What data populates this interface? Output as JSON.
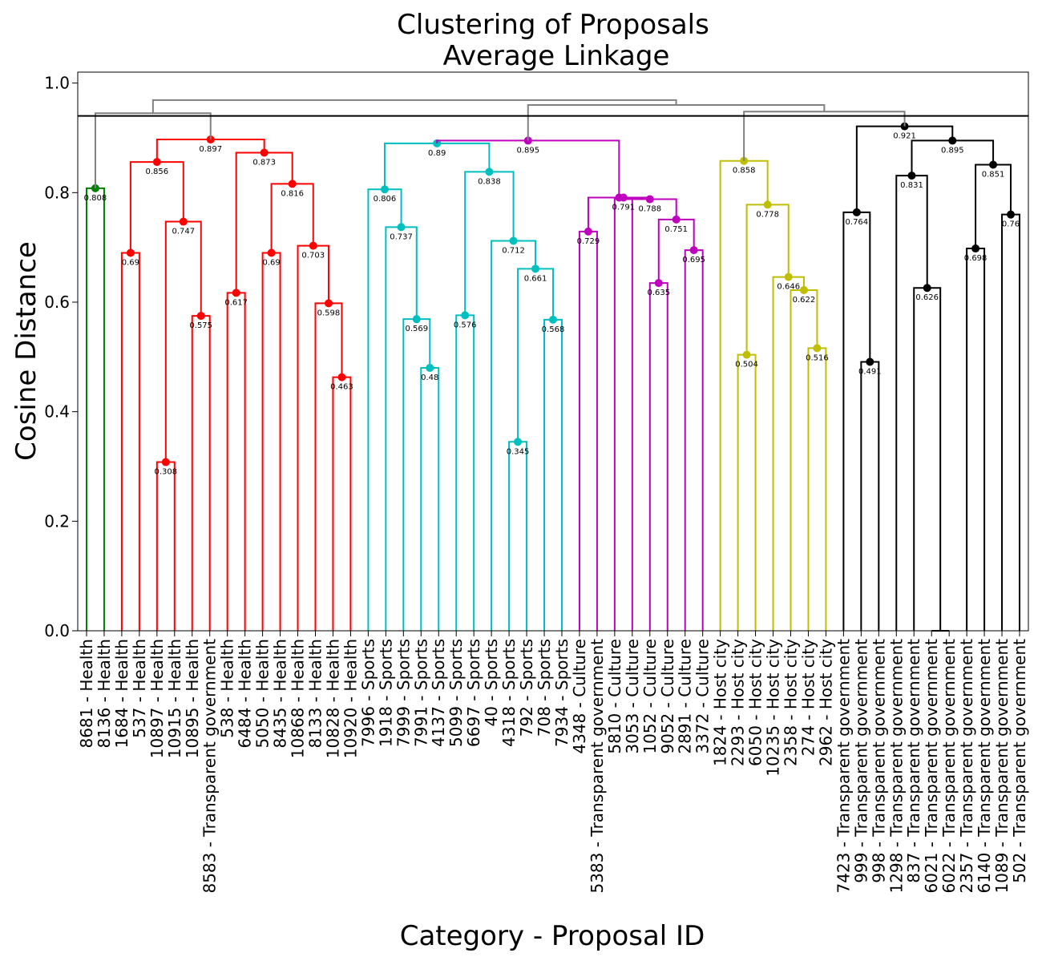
{
  "chart_data": {
    "type": "dendrogram",
    "title": "Clustering of Proposals",
    "subtitle": "Average Linkage",
    "xlabel": "Category - Proposal ID",
    "ylabel": "Cosine Distance",
    "ylim": [
      0,
      1.02
    ],
    "yticks": [
      0.0,
      0.2,
      0.4,
      0.6,
      0.8,
      1.0
    ],
    "ytick_labels": [
      "0.0",
      "0.2",
      "0.4",
      "0.6",
      "0.8",
      "1.0"
    ],
    "threshold": 0.94,
    "grid": false,
    "leaves": [
      "8681 - Health",
      "8136 - Health",
      "1684 - Health",
      "537 - Health",
      "10897 - Health",
      "10915 - Health",
      "10895 - Health",
      "8583 - Transparent government",
      "538 - Health",
      "6484 - Health",
      "5050 - Health",
      "8435 - Health",
      "10868 - Health",
      "8133 - Health",
      "10828 - Health",
      "10920 - Health",
      "7996 - Sports",
      "1918 - Sports",
      "7999 - Sports",
      "7991 - Sports",
      "4137 - Sports",
      "5099 - Sports",
      "6697 - Sports",
      "40 - Sports",
      "4318 - Sports",
      "792 - Sports",
      "708 - Sports",
      "7934 - Sports",
      "4348 - Culture",
      "5383 - Transparent government",
      "5810 - Culture",
      "3053 - Culture",
      "1052 - Culture",
      "9052 - Culture",
      "2891 - Culture",
      "3372 - Culture",
      "1824 - Host city",
      "2293 - Host city",
      "6050 - Host city",
      "10235 - Host city",
      "2358 - Host city",
      "274 - Host city",
      "2962 - Host city",
      "7423 - Transparent government",
      "999 - Transparent government",
      "998 - Transparent government",
      "1298 - Transparent government",
      "837 - Transparent government",
      "6021 - Transparent government",
      "6022 - Transparent government",
      "2357 - Transparent government",
      "6140 - Transparent government",
      "1089 - Transparent government",
      "502 - Transparent government"
    ],
    "colors": {
      "green": "#008000",
      "red": "#ff0000",
      "cyan": "#00bfbf",
      "magenta": "#bf00bf",
      "yellow": "#bfbf00",
      "black": "#000000",
      "above": "#808080"
    },
    "merges": [
      {
        "a": 0,
        "b": 1,
        "h": 0.808,
        "label": "0.808",
        "color": "green"
      },
      {
        "a": 2,
        "b": 3,
        "h": 0.69,
        "label": "0.69",
        "color": "red"
      },
      {
        "a": 4,
        "b": 5,
        "h": 0.308,
        "label": "0.308",
        "color": "red"
      },
      {
        "a": 6,
        "b": 7,
        "h": 0.575,
        "label": "0.575",
        "color": "red"
      },
      {
        "a": 56,
        "b": 57,
        "h": 0.747,
        "label": "0.747",
        "color": "red"
      },
      {
        "a": 55,
        "b": 58,
        "h": 0.856,
        "label": "0.856",
        "color": "red"
      },
      {
        "a": 8,
        "b": 9,
        "h": 0.617,
        "label": "0.617",
        "color": "red"
      },
      {
        "a": 10,
        "b": 11,
        "h": 0.69,
        "label": "0.69",
        "color": "red"
      },
      {
        "a": 14,
        "b": 15,
        "h": 0.463,
        "label": "0.463",
        "color": "red"
      },
      {
        "a": 13,
        "b": 62,
        "h": 0.598,
        "label": "0.598",
        "color": "red"
      },
      {
        "a": 12,
        "b": 63,
        "h": 0.703,
        "label": "0.703",
        "color": "red"
      },
      {
        "a": 61,
        "b": 64,
        "h": 0.816,
        "label": "0.816",
        "color": "red"
      },
      {
        "a": 60,
        "b": 65,
        "h": 0.873,
        "label": "0.873",
        "color": "red"
      },
      {
        "a": 59,
        "b": 66,
        "h": 0.897,
        "label": "0.897",
        "color": "red"
      },
      {
        "a": 19,
        "b": 20,
        "h": 0.48,
        "label": "0.48",
        "color": "cyan"
      },
      {
        "a": 18,
        "b": 68,
        "h": 0.569,
        "label": "0.569",
        "color": "cyan"
      },
      {
        "a": 17,
        "b": 69,
        "h": 0.737,
        "label": "0.737",
        "color": "cyan"
      },
      {
        "a": 16,
        "b": 70,
        "h": 0.806,
        "label": "0.806",
        "color": "cyan"
      },
      {
        "a": 21,
        "b": 22,
        "h": 0.576,
        "label": "0.576",
        "color": "cyan"
      },
      {
        "a": 24,
        "b": 25,
        "h": 0.345,
        "label": "0.345",
        "color": "cyan"
      },
      {
        "a": 26,
        "b": 27,
        "h": 0.568,
        "label": "0.568",
        "color": "cyan"
      },
      {
        "a": 73,
        "b": 74,
        "h": 0.661,
        "label": "0.661",
        "color": "cyan"
      },
      {
        "a": 23,
        "b": 75,
        "h": 0.712,
        "label": "0.712",
        "color": "cyan"
      },
      {
        "a": 72,
        "b": 76,
        "h": 0.838,
        "label": "0.838",
        "color": "cyan"
      },
      {
        "a": 71,
        "b": 77,
        "h": 0.89,
        "label": "0.89",
        "color": "cyan"
      },
      {
        "a": 28,
        "b": 29,
        "h": 0.729,
        "label": "0.729",
        "color": "magenta"
      },
      {
        "a": 30,
        "b": 31,
        "h": 0.791,
        "label": "0.791",
        "color": "magenta"
      },
      {
        "a": 32,
        "b": 33,
        "h": 0.635,
        "label": "0.635",
        "color": "magenta"
      },
      {
        "a": 34,
        "b": 35,
        "h": 0.695,
        "label": "0.695",
        "color": "magenta"
      },
      {
        "a": 81,
        "b": 82,
        "h": 0.751,
        "label": "0.751",
        "color": "magenta"
      },
      {
        "a": 80,
        "b": 83,
        "h": 0.788,
        "label": "0.788",
        "color": "magenta"
      },
      {
        "a": 79,
        "b": 84,
        "h": 0.791,
        "label": "",
        "color": "magenta"
      },
      {
        "a": 78,
        "b": 85,
        "h": 0.895,
        "label": "0.895",
        "color": "magenta"
      },
      {
        "a": 37,
        "b": 38,
        "h": 0.504,
        "label": "0.504",
        "color": "yellow"
      },
      {
        "a": 41,
        "b": 42,
        "h": 0.516,
        "label": "0.516",
        "color": "yellow"
      },
      {
        "a": 40,
        "b": 88,
        "h": 0.622,
        "label": "0.622",
        "color": "yellow"
      },
      {
        "a": 39,
        "b": 89,
        "h": 0.646,
        "label": "0.646",
        "color": "yellow"
      },
      {
        "a": 87,
        "b": 90,
        "h": 0.778,
        "label": "0.778",
        "color": "yellow"
      },
      {
        "a": 36,
        "b": 91,
        "h": 0.858,
        "label": "0.858",
        "color": "yellow"
      },
      {
        "a": 44,
        "b": 45,
        "h": 0.491,
        "label": "0.491",
        "color": "black"
      },
      {
        "a": 43,
        "b": 93,
        "h": 0.764,
        "label": "0.764",
        "color": "black"
      },
      {
        "a": 48,
        "b": 49,
        "h": 0.0,
        "label": "",
        "color": "black"
      },
      {
        "a": 47,
        "b": 95,
        "h": 0.626,
        "label": "0.626",
        "color": "black"
      },
      {
        "a": 46,
        "b": 96,
        "h": 0.831,
        "label": "0.831",
        "color": "black"
      },
      {
        "a": 50,
        "b": 51,
        "h": 0.698,
        "label": "0.698",
        "color": "black"
      },
      {
        "a": 52,
        "b": 53,
        "h": 0.76,
        "label": "0.76",
        "color": "black"
      },
      {
        "a": 98,
        "b": 99,
        "h": 0.851,
        "label": "0.851",
        "color": "black"
      },
      {
        "a": 97,
        "b": 100,
        "h": 0.895,
        "label": "0.895",
        "color": "black"
      },
      {
        "a": 94,
        "b": 101,
        "h": 0.921,
        "label": "0.921",
        "color": "black"
      },
      {
        "a": 54,
        "b": 67,
        "h": 0.945,
        "label": "",
        "color": "above"
      },
      {
        "a": 92,
        "b": 102,
        "h": 0.948,
        "label": "",
        "color": "above"
      },
      {
        "a": 86,
        "b": 104,
        "h": 0.96,
        "label": "",
        "color": "above"
      },
      {
        "a": 78,
        "b": 105,
        "h": 0.0,
        "label": "",
        "color": "skip"
      },
      {
        "a": 103,
        "b": 105,
        "h": 0.969,
        "label": "",
        "color": "above"
      }
    ]
  }
}
